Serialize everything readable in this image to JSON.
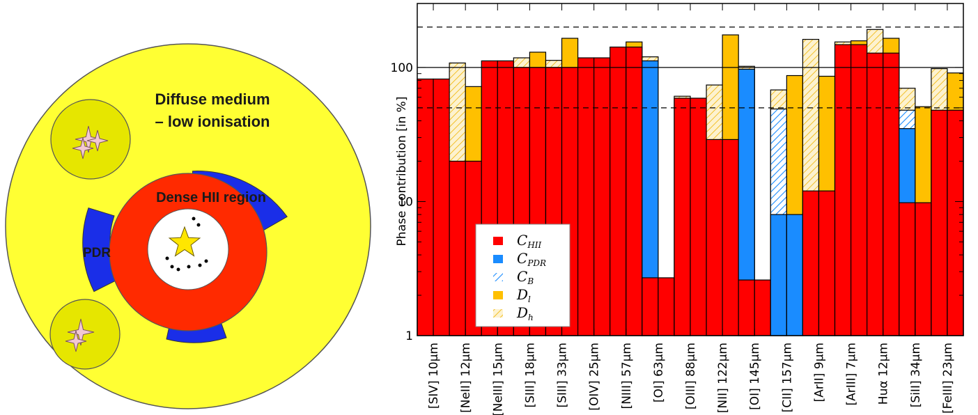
{
  "schematic": {
    "labels": {
      "diffuse_line1": "Diffuse medium",
      "diffuse_line2": "– low ionisation",
      "dense": "Dense HII region",
      "pdr": "PDR"
    },
    "colors": {
      "diffuse": "#ffff33",
      "hii": "#ff2a00",
      "pdr": "#1a2ee8",
      "core": "#ffffff",
      "star": "#ffe600",
      "small_star": "#f2c8d2"
    }
  },
  "chart_data": {
    "type": "bar",
    "title": "",
    "xlabel": "",
    "ylabel": "Phase contribution [in %]",
    "yscale": "log",
    "ylim": [
      1,
      300
    ],
    "yticks": [
      1,
      10,
      100
    ],
    "ytick_labels": [
      "1",
      "10",
      "100"
    ],
    "reference_lines": [
      {
        "value": 100,
        "style": "solid"
      },
      {
        "value": 50,
        "style": "dashed"
      },
      {
        "value": 200,
        "style": "dashed"
      }
    ],
    "categories": [
      "[SIV] 10µm",
      "[NeII] 12µm",
      "[NeIII] 15µm",
      "[SIII] 18µm",
      "[SIII] 33µm",
      "[OIV] 25µm",
      "[NIII] 57µm",
      "[OI] 63µm",
      "[OIII] 88µm",
      "[NII] 122µm",
      "[OI] 145µm",
      "[CII] 157µm",
      "[ArII] 9µm",
      "[ArIII] 7µm",
      "Huα 12µm",
      "[SiII] 34µm",
      "[FeIII] 23µm"
    ],
    "colors": {
      "C_HII": "#ff0000",
      "C_PDR": "#1a8cff",
      "C_B": "#1a8cff",
      "D_l": "#ffc000",
      "D_h": "#ffc000"
    },
    "legend": {
      "position": "lower-left",
      "entries": [
        {
          "key": "C_HII",
          "main": "C",
          "sub": "HII",
          "style": "solid"
        },
        {
          "key": "C_PDR",
          "main": "C",
          "sub": "PDR",
          "style": "solid"
        },
        {
          "key": "C_B",
          "main": "C",
          "sub": "B",
          "style": "hatched"
        },
        {
          "key": "D_l",
          "main": "D",
          "sub": "l",
          "style": "solid"
        },
        {
          "key": "D_h",
          "main": "D",
          "sub": "h",
          "style": "hatched"
        }
      ]
    },
    "series": [
      {
        "key": "C_HII",
        "values": [
          82,
          20,
          112,
          100,
          100,
          118,
          142,
          2.7,
          59,
          29,
          2.6,
          0,
          12,
          148,
          128,
          9.8,
          48
        ]
      },
      {
        "key": "C_PDR",
        "values": [
          0,
          0,
          0,
          0,
          0,
          0,
          0,
          112,
          0,
          0,
          97,
          8,
          0,
          0,
          0,
          35,
          0
        ]
      },
      {
        "key": "C_B",
        "values": [
          0,
          0,
          0,
          0,
          0,
          0,
          0,
          0,
          0,
          0,
          0,
          49,
          0,
          0,
          0,
          48,
          0
        ]
      },
      {
        "key": "D_h",
        "values": [
          0,
          108,
          0,
          118,
          113,
          0,
          0,
          120,
          61,
          74,
          102,
          68,
          162,
          155,
          192,
          70,
          98
        ]
      },
      {
        "key": "D_l",
        "values": [
          0,
          72,
          0,
          130,
          165,
          0,
          155,
          0,
          0,
          175,
          0,
          87,
          86,
          158,
          165,
          51,
          91
        ]
      }
    ]
  }
}
